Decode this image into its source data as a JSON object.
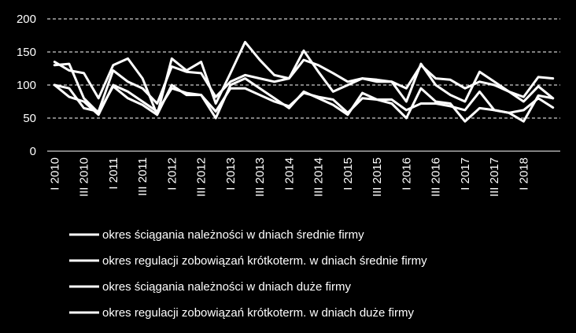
{
  "chart_data": {
    "type": "line",
    "title": "",
    "xlabel": "",
    "ylabel": "",
    "ylim": [
      0,
      200
    ],
    "yticks": [
      0,
      50,
      100,
      150,
      200
    ],
    "grid": "horizontal dashed",
    "legend_position": "bottom",
    "background_color": "#000000",
    "line_color": "#ffffff",
    "x_tick_labels": [
      "I 2010",
      "III 2010",
      "I 2011",
      "III 2011",
      "I 2012",
      "III 2012",
      "I 2013",
      "III 2013",
      "I 2014",
      "III 2014",
      "I 2015",
      "III 2015",
      "I 2016",
      "III 2016",
      "I 2017",
      "III 2017",
      "I 2018"
    ],
    "x_tick_every": 2,
    "series": [
      {
        "name": "okres ściągania należności w dniach średnie firmy",
        "values": [
          135,
          122,
          118,
          80,
          130,
          140,
          110,
          55,
          140,
          122,
          135,
          72,
          118,
          165,
          138,
          115,
          110,
          152,
          120,
          90,
          100,
          110,
          108,
          105,
          75,
          132,
          100,
          85,
          75,
          120,
          105,
          90,
          82,
          112,
          110
        ]
      },
      {
        "name": "okres regulacji zobowiązań krótkoterm. w dniach średnie firmy",
        "values": [
          100,
          95,
          65,
          60,
          122,
          105,
          95,
          72,
          128,
          120,
          118,
          82,
          105,
          115,
          110,
          105,
          110,
          138,
          130,
          118,
          105,
          110,
          105,
          105,
          95,
          130,
          110,
          108,
          95,
          105,
          100,
          90,
          75,
          98,
          80
        ]
      },
      {
        "name": "okres ściągania należności w dniach duże firmy",
        "values": [
          130,
          132,
          80,
          58,
          98,
          80,
          70,
          55,
          100,
          85,
          85,
          50,
          100,
          110,
          95,
          80,
          65,
          90,
          80,
          70,
          55,
          88,
          78,
          72,
          50,
          95,
          75,
          72,
          45,
          65,
          62,
          58,
          62,
          80,
          66
        ]
      },
      {
        "name": "okres regulacji zobowiązań krótkoterm. w dniach duże firmy",
        "values": [
          100,
          82,
          75,
          55,
          100,
          90,
          75,
          60,
          95,
          88,
          85,
          60,
          95,
          95,
          85,
          75,
          68,
          88,
          82,
          78,
          58,
          80,
          78,
          78,
          62,
          72,
          72,
          68,
          62,
          90,
          62,
          58,
          45,
          84,
          80
        ]
      }
    ]
  }
}
